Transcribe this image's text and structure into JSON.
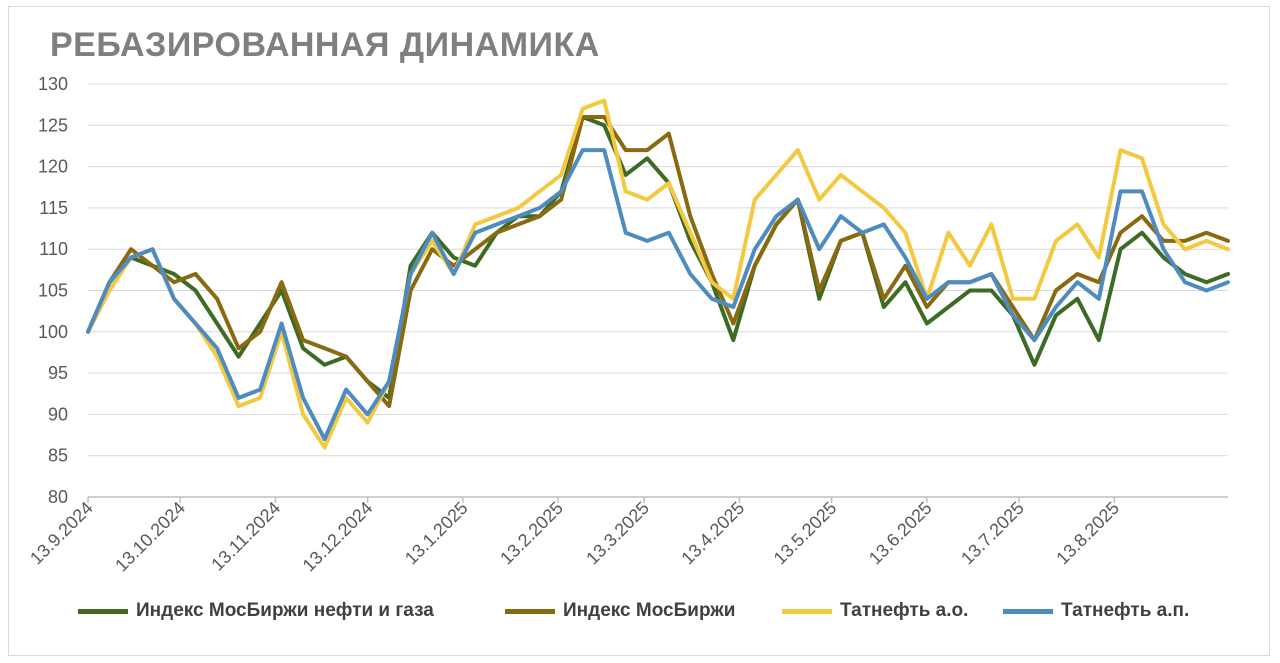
{
  "chart_data": {
    "type": "line",
    "title": "РЕБАЗИРОВАННАЯ ДИНАМИКА",
    "xlabel": "",
    "ylabel": "",
    "ylim": [
      80,
      130
    ],
    "yticks": [
      80,
      85,
      90,
      95,
      100,
      105,
      110,
      115,
      120,
      125,
      130
    ],
    "grid": true,
    "legend_position": "bottom",
    "xlim": [
      "2024-09-13",
      "2025-09-19"
    ],
    "x_tick_labels": [
      "13.9.2024",
      "13.10.2024",
      "13.11.2024",
      "13.12.2024",
      "13.1.2025",
      "13.2.2025",
      "13.3.2025",
      "13.4.2025",
      "13.5.2025",
      "13.6.2025",
      "13.7.2025",
      "13.8.2025"
    ],
    "x_tick_dates": [
      "2024-09-13",
      "2024-10-13",
      "2024-11-13",
      "2024-12-13",
      "2025-01-13",
      "2025-02-13",
      "2025-03-13",
      "2025-04-13",
      "2025-05-13",
      "2025-06-13",
      "2025-07-13",
      "2025-08-13"
    ],
    "series": [
      {
        "name": "Индекс МосБиржи нефти и газа",
        "color": "#3d6b24",
        "x": [
          "2024-09-13",
          "2024-09-20",
          "2024-09-27",
          "2024-10-04",
          "2024-10-11",
          "2024-10-18",
          "2024-10-25",
          "2024-11-01",
          "2024-11-08",
          "2024-11-15",
          "2024-11-22",
          "2024-11-29",
          "2024-12-06",
          "2024-12-13",
          "2024-12-20",
          "2024-12-27",
          "2025-01-03",
          "2025-01-10",
          "2025-01-17",
          "2025-01-24",
          "2025-01-31",
          "2025-02-07",
          "2025-02-14",
          "2025-02-21",
          "2025-02-28",
          "2025-03-07",
          "2025-03-14",
          "2025-03-21",
          "2025-03-28",
          "2025-04-04",
          "2025-04-11",
          "2025-04-18",
          "2025-04-25",
          "2025-05-02",
          "2025-05-09",
          "2025-05-16",
          "2025-05-23",
          "2025-05-30",
          "2025-06-06",
          "2025-06-13",
          "2025-06-20",
          "2025-06-27",
          "2025-07-04",
          "2025-07-11",
          "2025-07-18",
          "2025-07-25",
          "2025-08-01",
          "2025-08-08",
          "2025-08-15",
          "2025-08-22",
          "2025-08-29",
          "2025-09-05",
          "2025-09-12",
          "2025-09-19"
        ],
        "values": [
          100,
          106,
          109,
          108,
          107,
          105,
          101,
          97,
          101,
          105,
          98,
          96,
          97,
          94,
          92,
          108,
          112,
          109,
          108,
          112,
          114,
          114,
          117,
          126,
          125,
          119,
          121,
          118,
          111,
          106,
          99,
          108,
          113,
          116,
          104,
          111,
          112,
          103,
          106,
          101,
          103,
          105,
          105,
          102,
          96,
          102,
          104,
          99,
          110,
          112,
          109,
          107,
          106,
          107
        ]
      },
      {
        "name": "Индекс МосБиржи",
        "color": "#8a6a10",
        "x": [
          "2024-09-13",
          "2024-09-20",
          "2024-09-27",
          "2024-10-04",
          "2024-10-11",
          "2024-10-18",
          "2024-10-25",
          "2024-11-01",
          "2024-11-08",
          "2024-11-15",
          "2024-11-22",
          "2024-11-29",
          "2024-12-06",
          "2024-12-13",
          "2024-12-20",
          "2024-12-27",
          "2025-01-03",
          "2025-01-10",
          "2025-01-17",
          "2025-01-24",
          "2025-01-31",
          "2025-02-07",
          "2025-02-14",
          "2025-02-21",
          "2025-02-28",
          "2025-03-07",
          "2025-03-14",
          "2025-03-21",
          "2025-03-28",
          "2025-04-04",
          "2025-04-11",
          "2025-04-18",
          "2025-04-25",
          "2025-05-02",
          "2025-05-09",
          "2025-05-16",
          "2025-05-23",
          "2025-05-30",
          "2025-06-06",
          "2025-06-13",
          "2025-06-20",
          "2025-06-27",
          "2025-07-04",
          "2025-07-11",
          "2025-07-18",
          "2025-07-25",
          "2025-08-01",
          "2025-08-08",
          "2025-08-15",
          "2025-08-22",
          "2025-08-29",
          "2025-09-05",
          "2025-09-12",
          "2025-09-19"
        ],
        "values": [
          100,
          106,
          110,
          108,
          106,
          107,
          104,
          98,
          100,
          106,
          99,
          98,
          97,
          94,
          91,
          105,
          110,
          108,
          110,
          112,
          113,
          114,
          116,
          126,
          126,
          122,
          122,
          124,
          114,
          107,
          101,
          108,
          113,
          116,
          105,
          111,
          112,
          104,
          108,
          103,
          106,
          106,
          107,
          103,
          99,
          105,
          107,
          106,
          112,
          114,
          111,
          111,
          112,
          111
        ]
      },
      {
        "name": "Татнефть а.о.",
        "color": "#f2c940",
        "x": [
          "2024-09-13",
          "2024-09-20",
          "2024-09-27",
          "2024-10-04",
          "2024-10-11",
          "2024-10-18",
          "2024-10-25",
          "2024-11-01",
          "2024-11-08",
          "2024-11-15",
          "2024-11-22",
          "2024-11-29",
          "2024-12-06",
          "2024-12-13",
          "2024-12-20",
          "2024-12-27",
          "2025-01-03",
          "2025-01-10",
          "2025-01-17",
          "2025-01-24",
          "2025-01-31",
          "2025-02-07",
          "2025-02-14",
          "2025-02-21",
          "2025-02-28",
          "2025-03-07",
          "2025-03-14",
          "2025-03-21",
          "2025-03-28",
          "2025-04-04",
          "2025-04-11",
          "2025-04-18",
          "2025-04-25",
          "2025-05-02",
          "2025-05-09",
          "2025-05-16",
          "2025-05-23",
          "2025-05-30",
          "2025-06-06",
          "2025-06-13",
          "2025-06-20",
          "2025-06-27",
          "2025-07-04",
          "2025-07-11",
          "2025-07-18",
          "2025-07-25",
          "2025-08-01",
          "2025-08-08",
          "2025-08-15",
          "2025-08-22",
          "2025-08-29",
          "2025-09-05",
          "2025-09-12",
          "2025-09-19"
        ],
        "values": [
          100,
          105,
          109,
          110,
          104,
          101,
          97,
          91,
          92,
          100,
          90,
          86,
          92,
          89,
          94,
          107,
          111,
          107,
          113,
          114,
          115,
          117,
          119,
          127,
          128,
          117,
          116,
          118,
          112,
          106,
          104,
          116,
          119,
          122,
          116,
          119,
          117,
          115,
          112,
          104,
          112,
          108,
          113,
          104,
          104,
          111,
          113,
          109,
          122,
          121,
          113,
          110,
          111,
          110
        ]
      },
      {
        "name": "Татнефть а.п.",
        "color": "#4e8cbf",
        "x": [
          "2024-09-13",
          "2024-09-20",
          "2024-09-27",
          "2024-10-04",
          "2024-10-11",
          "2024-10-18",
          "2024-10-25",
          "2024-11-01",
          "2024-11-08",
          "2024-11-15",
          "2024-11-22",
          "2024-11-29",
          "2024-12-06",
          "2024-12-13",
          "2024-12-20",
          "2024-12-27",
          "2025-01-03",
          "2025-01-10",
          "2025-01-17",
          "2025-01-24",
          "2025-01-31",
          "2025-02-07",
          "2025-02-14",
          "2025-02-21",
          "2025-02-28",
          "2025-03-07",
          "2025-03-14",
          "2025-03-21",
          "2025-03-28",
          "2025-04-04",
          "2025-04-11",
          "2025-04-18",
          "2025-04-25",
          "2025-05-02",
          "2025-05-09",
          "2025-05-16",
          "2025-05-23",
          "2025-05-30",
          "2025-06-06",
          "2025-06-13",
          "2025-06-20",
          "2025-06-27",
          "2025-07-04",
          "2025-07-11",
          "2025-07-18",
          "2025-07-25",
          "2025-08-01",
          "2025-08-08",
          "2025-08-15",
          "2025-08-22",
          "2025-08-29",
          "2025-09-05",
          "2025-09-12",
          "2025-09-19"
        ],
        "values": [
          100,
          106,
          109,
          110,
          104,
          101,
          98,
          92,
          93,
          101,
          92,
          87,
          93,
          90,
          94,
          107,
          112,
          107,
          112,
          113,
          114,
          115,
          117,
          122,
          122,
          112,
          111,
          112,
          107,
          104,
          103,
          110,
          114,
          116,
          110,
          114,
          112,
          113,
          109,
          104,
          106,
          106,
          107,
          102,
          99,
          103,
          106,
          104,
          117,
          117,
          110,
          106,
          105,
          106
        ]
      }
    ]
  }
}
